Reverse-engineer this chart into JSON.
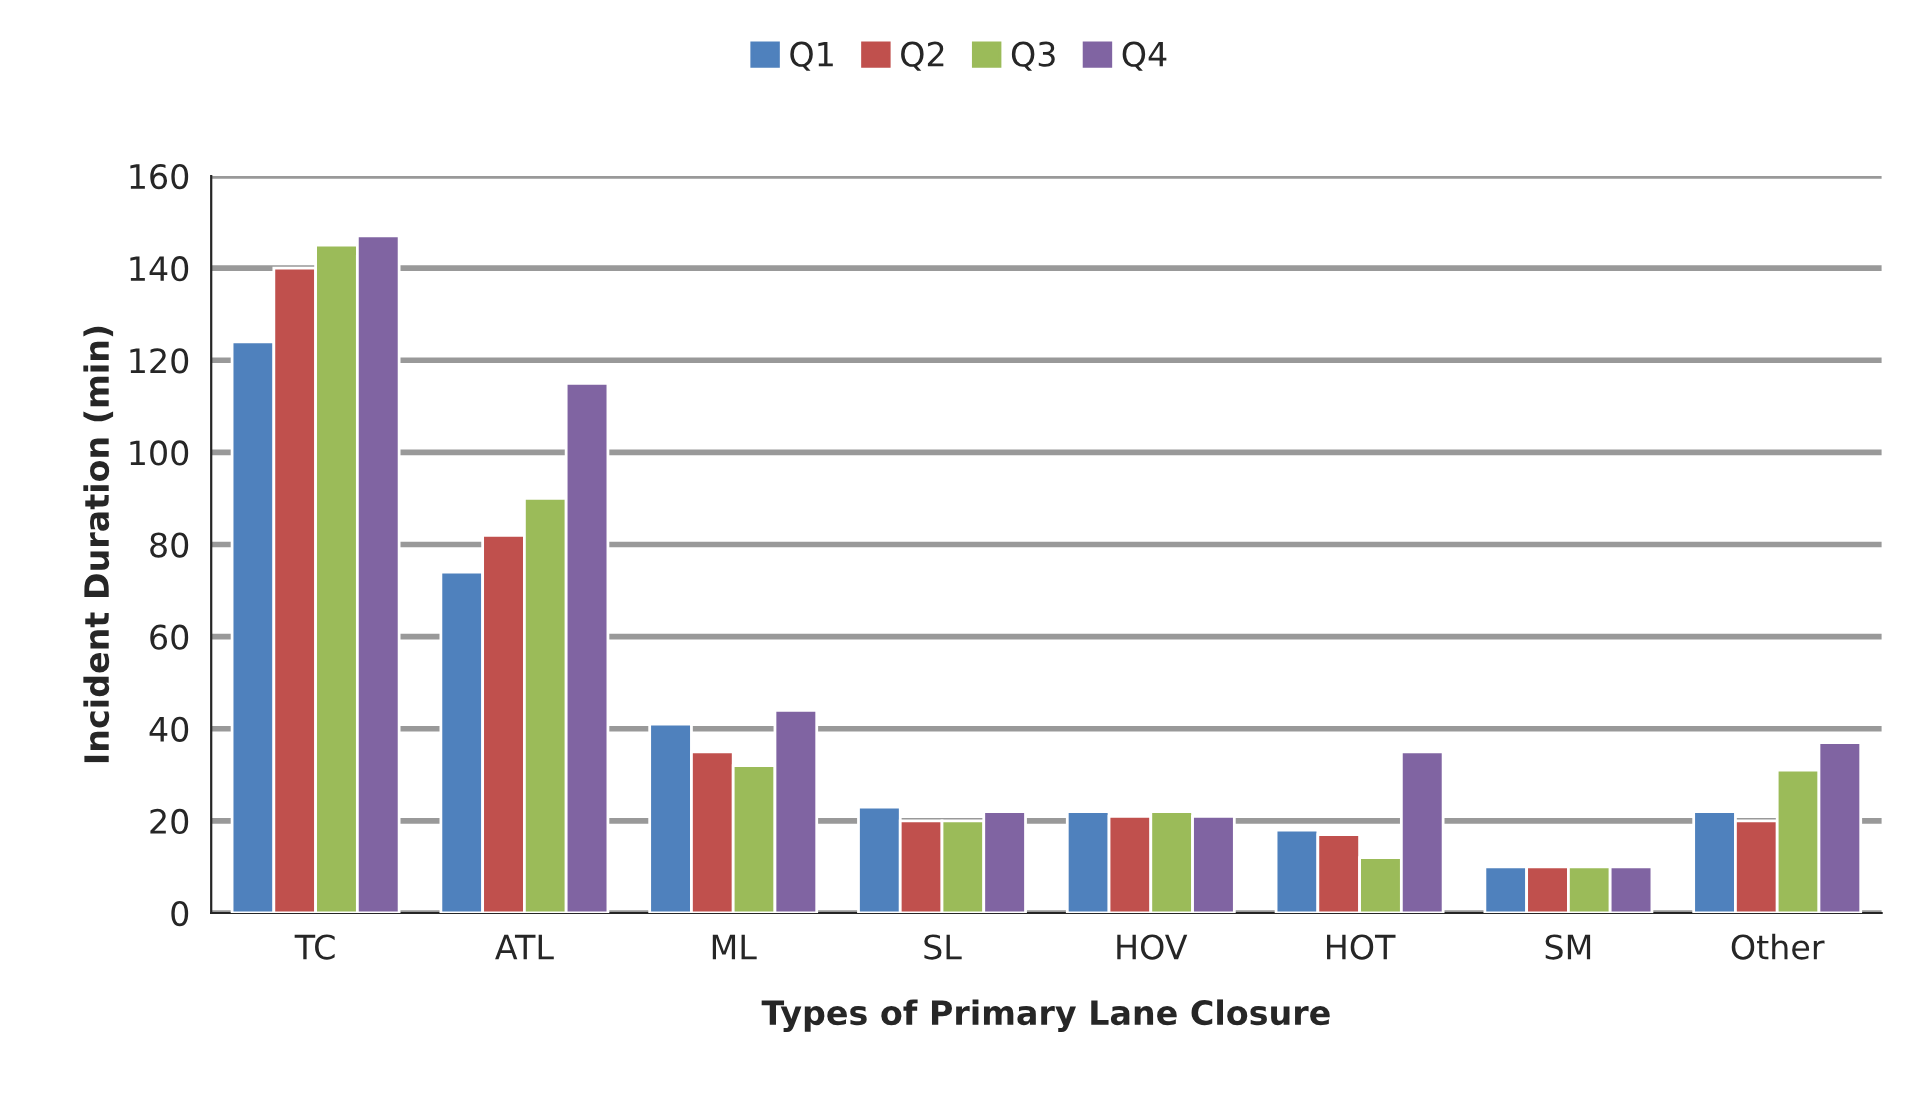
{
  "chart_data": {
    "type": "bar",
    "xlabel": "Types of Primary Lane Closure",
    "ylabel": "Incident Duration (min)",
    "categories": [
      "TC",
      "ATL",
      "ML",
      "SL",
      "HOV",
      "HOT",
      "SM",
      "Other"
    ],
    "series": [
      {
        "name": "Q1",
        "color": "#4f81bd",
        "values": [
          124,
          74,
          41,
          23,
          22,
          18,
          10,
          22
        ]
      },
      {
        "name": "Q2",
        "color": "#c0504d",
        "values": [
          140,
          82,
          35,
          20,
          21,
          17,
          10,
          20
        ]
      },
      {
        "name": "Q3",
        "color": "#9bbb59",
        "values": [
          145,
          90,
          32,
          20,
          22,
          12,
          10,
          31
        ]
      },
      {
        "name": "Q4",
        "color": "#8064a2",
        "values": [
          147,
          115,
          44,
          22,
          21,
          35,
          10,
          37
        ]
      }
    ],
    "ylim": [
      0,
      160
    ],
    "yticks": [
      0,
      20,
      40,
      60,
      80,
      100,
      120,
      140,
      160
    ],
    "grid": "y",
    "legend": "top"
  }
}
